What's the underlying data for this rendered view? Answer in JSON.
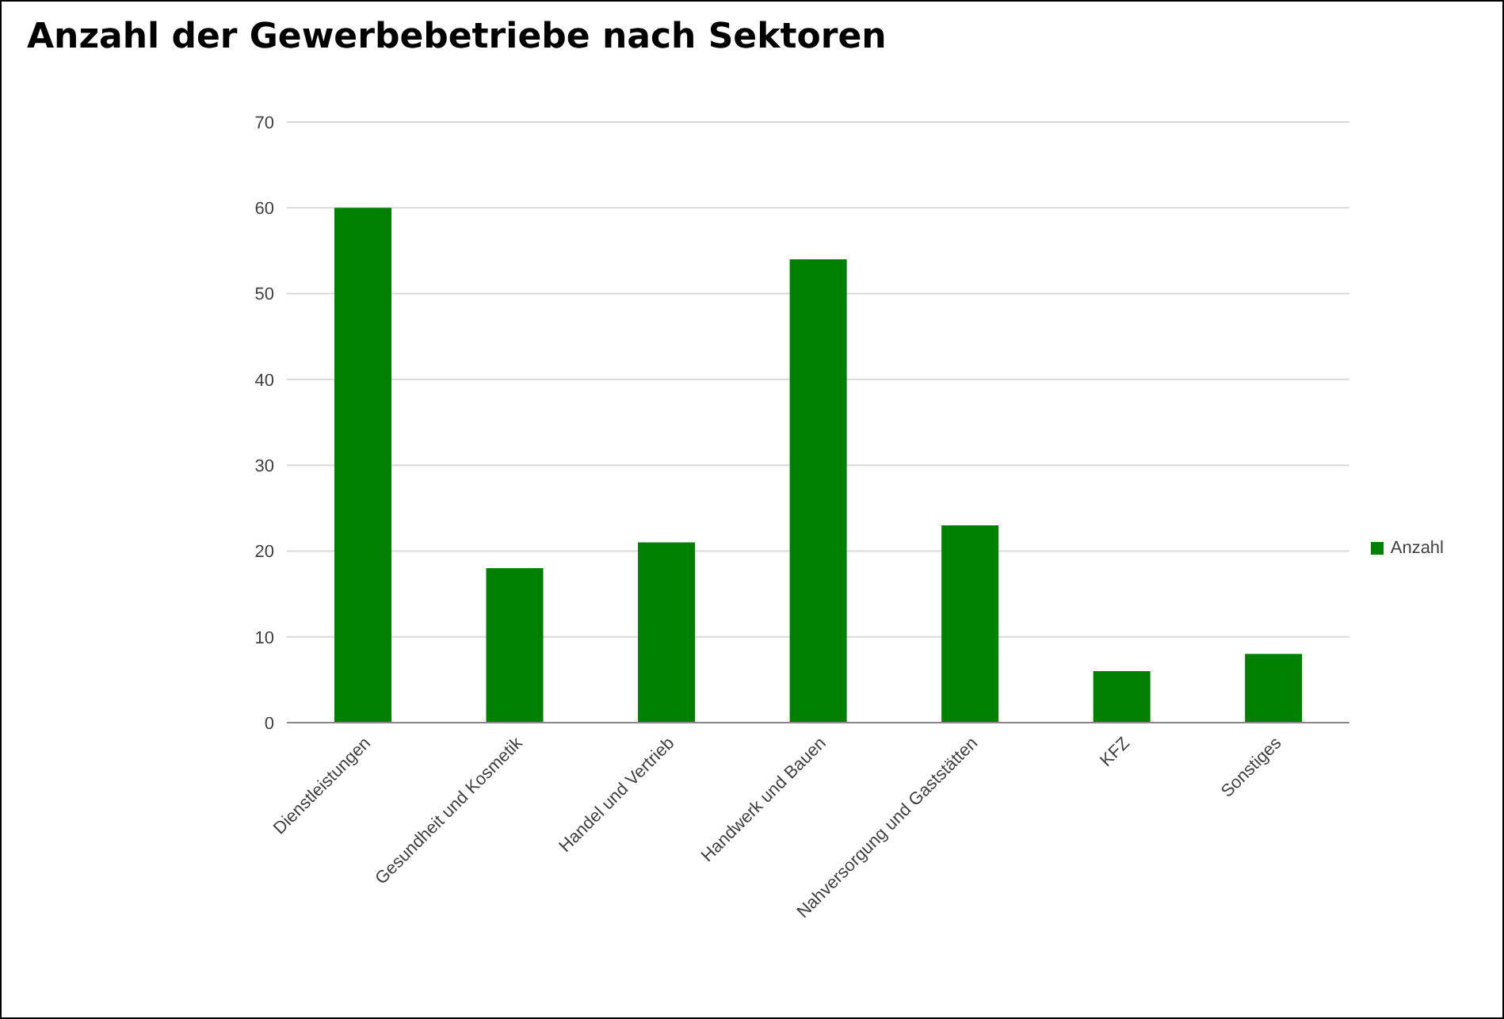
{
  "chart_data": {
    "type": "bar",
    "title": "Anzahl der Gewerbebetriebe nach Sektoren",
    "categories": [
      "Dienstleistungen",
      "Gesundheit und Kosmetik",
      "Handel und Vertrieb",
      "Handwerk und Bauen",
      "Nahversorgung und Gaststätten",
      "KFZ",
      "Sonstiges"
    ],
    "series": [
      {
        "name": "Anzahl",
        "color": "#008000",
        "values": [
          60,
          18,
          21,
          54,
          23,
          6,
          8
        ]
      }
    ],
    "ylim": [
      0,
      70
    ],
    "yticks": [
      0,
      10,
      20,
      30,
      40,
      50,
      60,
      70
    ],
    "grid": "y",
    "legend": "right"
  }
}
